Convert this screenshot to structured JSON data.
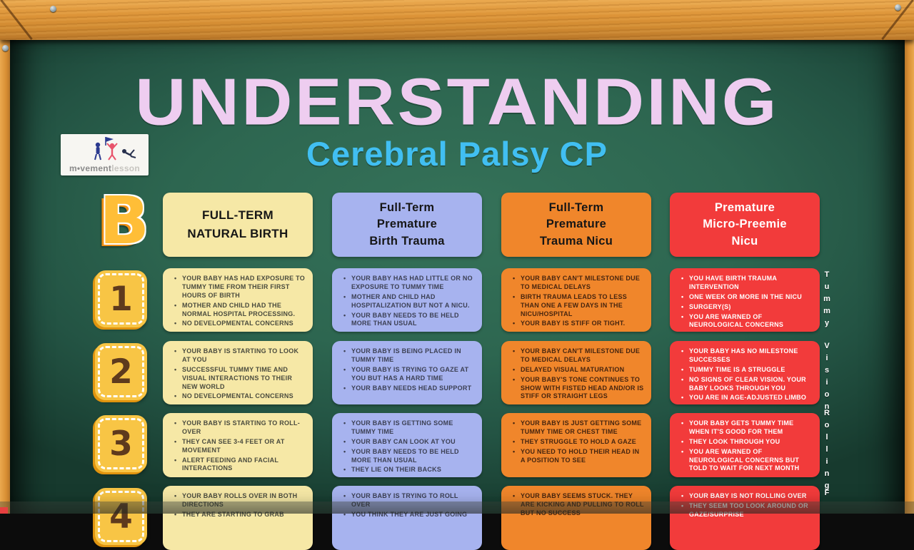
{
  "title": {
    "main": "UNDERSTANDING",
    "subtitle": "Cerebral Palsy CP",
    "main_color": "#EECDF0",
    "subtitle_color": "#41BFF2"
  },
  "logo": {
    "brand_dark": "m•vement",
    "brand_light": "lesson"
  },
  "board": {
    "row_letter": "B",
    "chalk_green": "#2D6650",
    "wood_color": "#DD9438",
    "badge_yellow": "#F8C545",
    "badge_number_color": "#5E3A1D"
  },
  "columns": [
    {
      "header": "FULL-TERM\nNATURAL BIRTH",
      "bg": "#F6E8A6",
      "header_text_color": "#161616",
      "cell_text_color": "#4A4B3E"
    },
    {
      "header": "Full-Term\nPremature\nBirth Trauma",
      "bg": "#A7B3EF",
      "header_text_color": "#161616",
      "cell_text_color": "#3C4054"
    },
    {
      "header": "Full-Term\nPremature\nTrauma Nicu",
      "bg": "#F0862B",
      "header_text_color": "#161616",
      "cell_text_color": "#47250F"
    },
    {
      "header": "Premature\nMicro-Preemie\nNicu",
      "bg": "#F23B3B",
      "header_text_color": "#FFFFFF",
      "cell_text_color": "#FFFFFF"
    }
  ],
  "rows": [
    {
      "number": "1",
      "side_label": "Tummy",
      "cells": [
        {
          "bullets": [
            "YOUR BABY HAS HAD EXPOSURE TO TUMMY TIME FROM THEIR FIRST HOURS OF BIRTH",
            "MOTHER AND CHILD HAD THE NORMAL HOSPITAL PROCESSING.",
            "NO DEVELOPMENTAL CONCERNS"
          ]
        },
        {
          "bullets": [
            "YOUR BABY HAS HAD LITTLE OR NO EXPOSURE TO TUMMY TIME",
            "MOTHER AND CHILD HAD HOSPITALIZATION BUT NOT A NICU.",
            "YOUR BABY NEEDS TO BE HELD MORE THAN USUAL"
          ]
        },
        {
          "bullets": [
            "YOUR BABY CAN'T MILESTONE DUE TO MEDICAL DELAYS",
            "BIRTH TRAUMA LEADS TO LESS THAN ONE A FEW DAYS IN THE NICU/HOSPITAL",
            "YOUR BABY IS STIFF OR TIGHT."
          ]
        },
        {
          "bullets": [
            "YOU HAVE BIRTH TRAUMA INTERVENTION",
            "ONE WEEK OR MORE IN THE NICU",
            "SURGERY(S)",
            "YOU ARE WARNED OF NEUROLOGICAL CONCERNS"
          ]
        }
      ]
    },
    {
      "number": "2",
      "side_label": "Vision",
      "cells": [
        {
          "bullets": [
            "YOUR BABY IS STARTING TO LOOK AT YOU",
            "SUCCESSFUL TUMMY TIME AND VISUAL INTERACTIONS TO THEIR NEW WORLD",
            "NO DEVELOPMENTAL CONCERNS"
          ]
        },
        {
          "bullets": [
            "YOUR BABY IS BEING PLACED IN TUMMY TIME",
            "YOUR BABY IS TRYING TO GAZE AT YOU BUT HAS A HARD TIME",
            "YOUR BABY NEEDS HEAD SUPPORT"
          ]
        },
        {
          "bullets": [
            "YOUR BABY CAN'T MILESTONE DUE TO MEDICAL DELAYS",
            "DELAYED VISUAL MATURATION",
            "YOUR BABY'S TONE CONTINUES TO SHOW WITH FISTED HEAD AND/OR IS STIFF OR STRAIGHT LEGS"
          ]
        },
        {
          "bullets": [
            "YOUR BABY HAS NO MILESTONE SUCCESSES",
            "TUMMY TIME IS A STRUGGLE",
            "NO SIGNS OF CLEAR VISION. YOUR BABY LOOKS THROUGH YOU",
            "YOU ARE IN AGE-ADJUSTED LIMBO"
          ]
        }
      ]
    },
    {
      "number": "3",
      "side_label": "Rolling",
      "cells": [
        {
          "bullets": [
            "YOUR BABY IS STARTING TO ROLL-OVER",
            "THEY CAN SEE 3-4 FEET OR AT MOVEMENT",
            "ALERT FEEDING AND FACIAL INTERACTIONS"
          ]
        },
        {
          "bullets": [
            "YOUR BABY IS GETTING SOME TUMMY TIME",
            "YOUR BABY CAN LOOK AT YOU",
            "YOUR BABY NEEDS TO BE HELD MORE THAN USUAL",
            "THEY LIE ON THEIR BACKS"
          ]
        },
        {
          "bullets": [
            "YOUR BABY IS JUST GETTING SOME TUMMY TIME OR CHEST TIME",
            "THEY STRUGGLE TO HOLD A GAZE",
            "YOU NEED TO HOLD THEIR HEAD IN A POSITION TO SEE"
          ]
        },
        {
          "bullets": [
            "YOUR BABY GETS TUMMY TIME WHEN IT'S GOOD FOR THEM",
            "THEY LOOK THROUGH YOU",
            "YOU ARE WARNED OF NEUROLOGICAL CONCERNS BUT TOLD TO WAIT FOR NEXT MONTH"
          ]
        }
      ]
    },
    {
      "number": "4",
      "side_label": "F",
      "cells": [
        {
          "bullets": [
            "YOUR BABY ROLLS OVER IN BOTH DIRECTIONS",
            "THEY ARE STARTING TO GRAB"
          ]
        },
        {
          "bullets": [
            "YOUR BABY IS TRYING TO ROLL OVER",
            "YOU THINK THEY ARE JUST GOING"
          ]
        },
        {
          "bullets": [
            "YOUR BABY SEEMS STUCK. THEY ARE KICKING AND PULLING TO ROLL BUT NO SUCCESS"
          ]
        },
        {
          "bullets": [
            "YOUR BABY IS NOT ROLLING OVER",
            "THEY SEEM TOO LOOK AROUND OR GAZE/SURPRISE"
          ]
        }
      ]
    }
  ]
}
